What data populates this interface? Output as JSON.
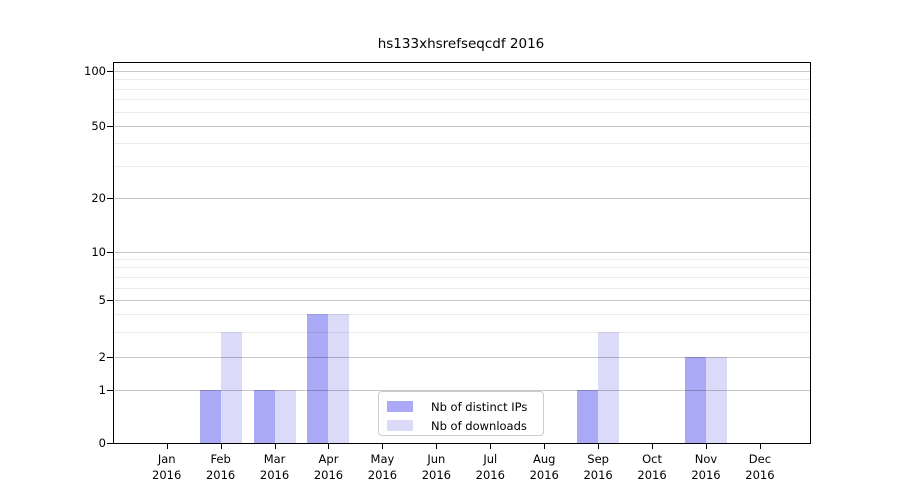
{
  "chart_data": {
    "type": "bar",
    "title": "hs133xhsrefseqcdf 2016",
    "categories": [
      "Jan 2016",
      "Feb 2016",
      "Mar 2016",
      "Apr 2016",
      "May 2016",
      "Jun 2016",
      "Jul 2016",
      "Aug 2016",
      "Sep 2016",
      "Oct 2016",
      "Nov 2016",
      "Dec 2016"
    ],
    "series": [
      {
        "name": "Nb of distinct IPs",
        "color": "#a9a9f6",
        "values": [
          0,
          1,
          1,
          4,
          0,
          0,
          0,
          0,
          1,
          0,
          2,
          0
        ]
      },
      {
        "name": "Nb of downloads",
        "color": "#dbdbf9",
        "values": [
          0,
          3,
          1,
          4,
          0,
          0,
          0,
          0,
          3,
          0,
          2,
          0
        ]
      }
    ],
    "yscale": "log-like with linear 0-1 segment",
    "yticks": [
      0,
      1,
      2,
      5,
      10,
      20,
      50,
      100
    ],
    "minor_gridline_values": [
      3,
      4,
      6,
      7,
      8,
      9,
      30,
      40,
      60,
      70,
      80,
      90
    ],
    "ylim": [
      0,
      120
    ],
    "xlabel": "",
    "ylabel": "",
    "grid": true,
    "legend_position": "lower center inside plot"
  },
  "colors": {
    "background": "#ffffff",
    "axis": "#000000",
    "bar_distinct_ips": "#a9a9f6",
    "bar_downloads": "#dbdbf9"
  }
}
